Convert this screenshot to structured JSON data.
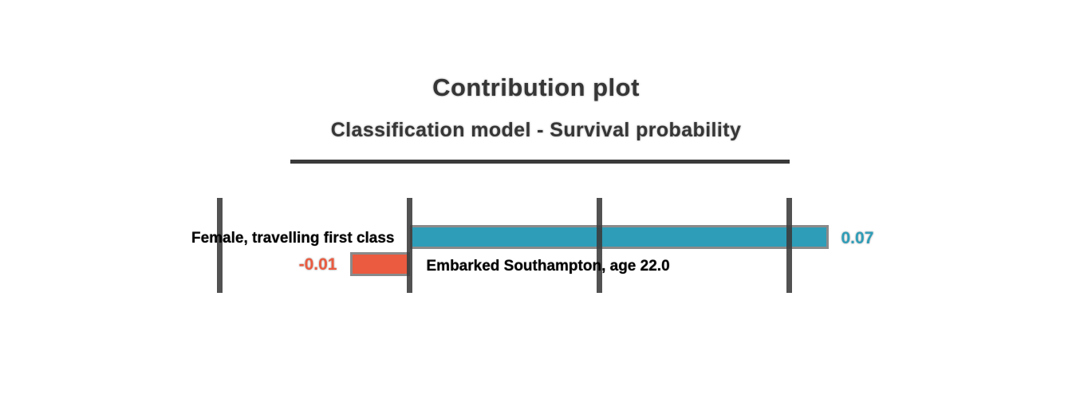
{
  "title": "Contribution plot",
  "subtitle": "Classification model - Survival probability",
  "chart_data": {
    "type": "bar",
    "orientation": "horizontal",
    "title": "Contribution plot",
    "subtitle": "Classification model - Survival probability",
    "series": [
      {
        "name": "Female, travelling first class",
        "value": 0.07,
        "value_label": "0.07",
        "color": "#2E9DB8",
        "label_side": "left-of-zero"
      },
      {
        "name": "Embarked Southampton, age 22.0",
        "value": -0.01,
        "value_label": "-0.01",
        "color": "#EA5B40",
        "label_side": "right-of-zero"
      }
    ],
    "x_axis": {
      "gridline_count": 4,
      "zero_at_gridline_index": 1,
      "tick_text_visible": false
    },
    "bar_outline_color": "#8A8A8A",
    "gridline_color": "#3A3A3A",
    "legend": "none",
    "background": "#FFFFFF"
  },
  "colors": {
    "positive_bar": "#2E9DB8",
    "negative_bar": "#EA5B40",
    "bar_outline": "#8A8A8A",
    "heading_text": "#363636",
    "annotation_text": "#050505"
  }
}
